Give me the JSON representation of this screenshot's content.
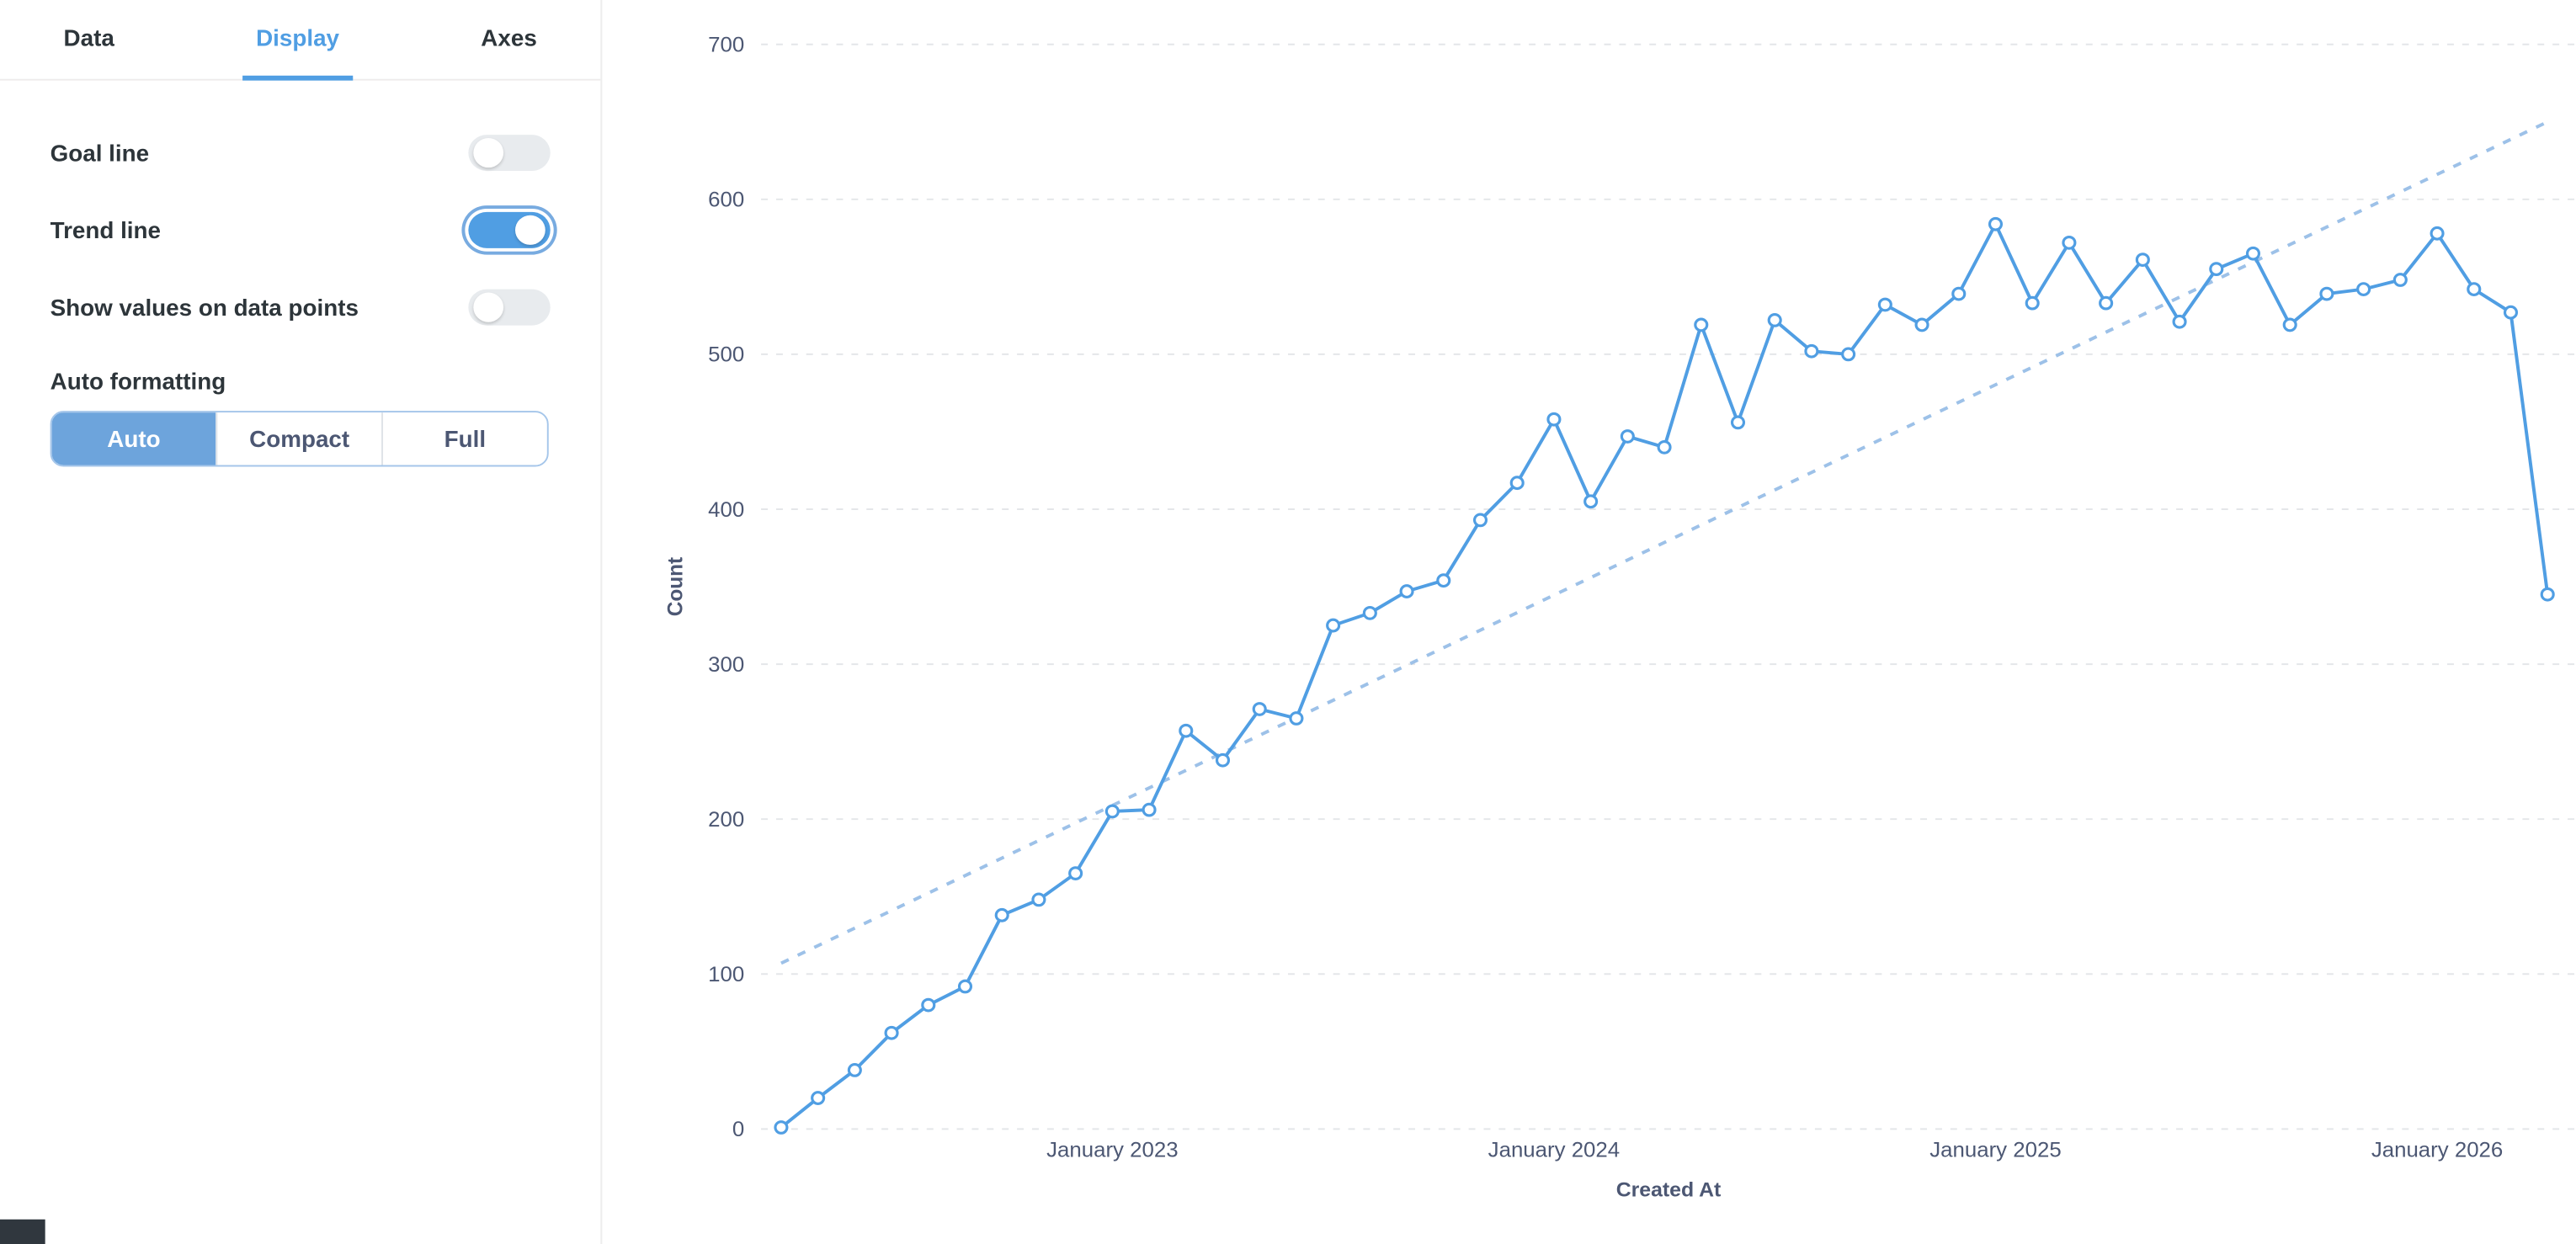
{
  "sidebar": {
    "tabs": [
      {
        "label": "Data",
        "active": false
      },
      {
        "label": "Display",
        "active": true
      },
      {
        "label": "Axes",
        "active": false
      }
    ],
    "settings": [
      {
        "label": "Goal line",
        "type": "toggle",
        "on": false
      },
      {
        "label": "Trend line",
        "type": "toggle",
        "on": true
      },
      {
        "label": "Show values on data points",
        "type": "toggle",
        "on": false
      }
    ],
    "auto_formatting": {
      "label": "Auto formatting",
      "options": [
        {
          "label": "Auto",
          "selected": true
        },
        {
          "label": "Compact",
          "selected": false
        },
        {
          "label": "Full",
          "selected": false
        }
      ]
    }
  },
  "colors": {
    "accent": "#509ee3",
    "trend_line": "#9dc1e8",
    "axis_text": "#4c5773",
    "gridline": "#e4e6e9",
    "segment_selected_bg": "#6da4dc"
  },
  "chart_data": {
    "type": "line",
    "title": "",
    "xlabel": "Created At",
    "ylabel": "Count",
    "ylim": [
      0,
      700
    ],
    "yticks": [
      0,
      100,
      200,
      300,
      400,
      500,
      600,
      700
    ],
    "grid": "horizontal-dashed",
    "legend": "none",
    "x": [
      "2022-04",
      "2022-05",
      "2022-06",
      "2022-07",
      "2022-08",
      "2022-09",
      "2022-10",
      "2022-11",
      "2022-12",
      "2023-01",
      "2023-02",
      "2023-03",
      "2023-04",
      "2023-05",
      "2023-06",
      "2023-07",
      "2023-08",
      "2023-09",
      "2023-10",
      "2023-11",
      "2023-12",
      "2024-01",
      "2024-02",
      "2024-03",
      "2024-04",
      "2024-05",
      "2024-06",
      "2024-07",
      "2024-08",
      "2024-09",
      "2024-10",
      "2024-11",
      "2024-12",
      "2025-01",
      "2025-02",
      "2025-03",
      "2025-04",
      "2025-05",
      "2025-06",
      "2025-07",
      "2025-08",
      "2025-09",
      "2025-10",
      "2025-11",
      "2025-12",
      "2026-01",
      "2026-02",
      "2026-03",
      "2026-04"
    ],
    "values": [
      1,
      20,
      38,
      62,
      80,
      92,
      138,
      148,
      165,
      205,
      206,
      257,
      238,
      271,
      265,
      325,
      333,
      347,
      354,
      393,
      417,
      458,
      405,
      447,
      440,
      519,
      456,
      522,
      502,
      500,
      532,
      519,
      539,
      584,
      533,
      572,
      533,
      561,
      521,
      555,
      565,
      519,
      539,
      542,
      548,
      578,
      542,
      527,
      345
    ],
    "x_tick_labels": [
      "January 2023",
      "January 2024",
      "January 2025",
      "January 2026"
    ],
    "x_tick_indices": [
      9,
      21,
      33,
      45
    ],
    "trend_line": {
      "style": "dashed",
      "start_value": 107,
      "end_value": 650
    }
  }
}
